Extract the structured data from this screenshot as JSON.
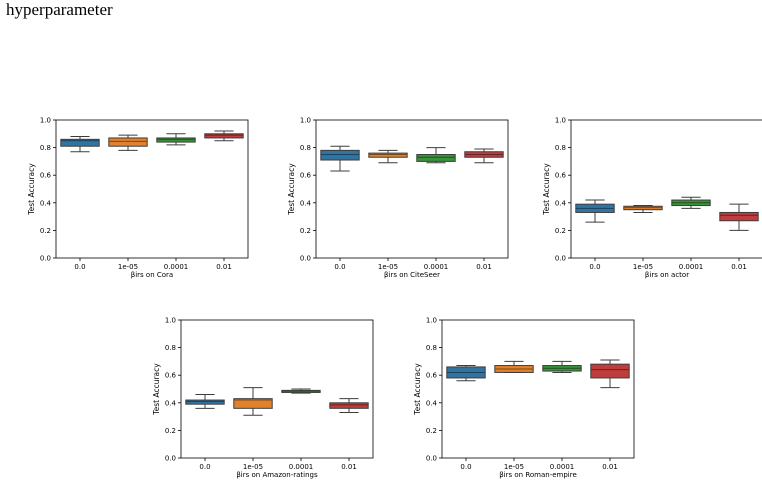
{
  "heading": "hyperparameter",
  "chart_data": [
    {
      "type": "box",
      "xlabel": "βirs on Cora",
      "ylabel": "Test Accuracy",
      "ylim": [
        0,
        1
      ],
      "yticks": [
        "0.0",
        "0.2",
        "0.4",
        "0.6",
        "0.8",
        "1.0"
      ],
      "categories": [
        "0.0",
        "1e-05",
        "0.0001",
        "0.01"
      ],
      "boxes": [
        {
          "whisker_low": 0.77,
          "q1": 0.81,
          "median": 0.85,
          "q3": 0.86,
          "whisker_high": 0.88
        },
        {
          "whisker_low": 0.78,
          "q1": 0.81,
          "median": 0.845,
          "q3": 0.87,
          "whisker_high": 0.89
        },
        {
          "whisker_low": 0.82,
          "q1": 0.84,
          "median": 0.86,
          "q3": 0.87,
          "whisker_high": 0.9
        },
        {
          "whisker_low": 0.85,
          "q1": 0.87,
          "median": 0.89,
          "q3": 0.9,
          "whisker_high": 0.92
        }
      ]
    },
    {
      "type": "box",
      "xlabel": "βirs on CiteSeer",
      "ylabel": "Test Accuracy",
      "ylim": [
        0,
        1
      ],
      "yticks": [
        "0.0",
        "0.2",
        "0.4",
        "0.6",
        "0.8",
        "1.0"
      ],
      "categories": [
        "0.0",
        "1e-05",
        "0.0001",
        "0.01"
      ],
      "boxes": [
        {
          "whisker_low": 0.63,
          "q1": 0.71,
          "median": 0.75,
          "q3": 0.78,
          "whisker_high": 0.81
        },
        {
          "whisker_low": 0.69,
          "q1": 0.73,
          "median": 0.75,
          "q3": 0.76,
          "whisker_high": 0.78
        },
        {
          "whisker_low": 0.69,
          "q1": 0.7,
          "median": 0.73,
          "q3": 0.75,
          "whisker_high": 0.8
        },
        {
          "whisker_low": 0.69,
          "q1": 0.73,
          "median": 0.75,
          "q3": 0.77,
          "whisker_high": 0.79
        }
      ]
    },
    {
      "type": "box",
      "xlabel": "βirs on actor",
      "ylabel": "Test Accuracy",
      "ylim": [
        0,
        1
      ],
      "yticks": [
        "0.0",
        "0.2",
        "0.4",
        "0.6",
        "0.8",
        "1.0"
      ],
      "categories": [
        "0.0",
        "1e-05",
        "0.0001",
        "0.01"
      ],
      "boxes": [
        {
          "whisker_low": 0.26,
          "q1": 0.33,
          "median": 0.36,
          "q3": 0.39,
          "whisker_high": 0.42
        },
        {
          "whisker_low": 0.33,
          "q1": 0.35,
          "median": 0.365,
          "q3": 0.375,
          "whisker_high": 0.38
        },
        {
          "whisker_low": 0.36,
          "q1": 0.38,
          "median": 0.4,
          "q3": 0.42,
          "whisker_high": 0.44
        },
        {
          "whisker_low": 0.2,
          "q1": 0.27,
          "median": 0.31,
          "q3": 0.33,
          "whisker_high": 0.39
        }
      ]
    },
    {
      "type": "box",
      "xlabel": "βirs on Amazon-ratings",
      "ylabel": "Test Accuracy",
      "ylim": [
        0,
        1
      ],
      "yticks": [
        "0.0",
        "0.2",
        "0.4",
        "0.6",
        "0.8",
        "1.0"
      ],
      "categories": [
        "0.0",
        "1e-05",
        "0.0001",
        "0.01"
      ],
      "boxes": [
        {
          "whisker_low": 0.36,
          "q1": 0.39,
          "median": 0.41,
          "q3": 0.42,
          "whisker_high": 0.46
        },
        {
          "whisker_low": 0.31,
          "q1": 0.36,
          "median": 0.42,
          "q3": 0.43,
          "whisker_high": 0.51
        },
        {
          "whisker_low": 0.47,
          "q1": 0.475,
          "median": 0.485,
          "q3": 0.49,
          "whisker_high": 0.5
        },
        {
          "whisker_low": 0.33,
          "q1": 0.36,
          "median": 0.385,
          "q3": 0.4,
          "whisker_high": 0.43
        }
      ]
    },
    {
      "type": "box",
      "xlabel": "βirs on Roman-empire",
      "ylabel": "Test Accuracy",
      "ylim": [
        0,
        1
      ],
      "yticks": [
        "0.0",
        "0.2",
        "0.4",
        "0.6",
        "0.8",
        "1.0"
      ],
      "categories": [
        "0.0",
        "1e-05",
        "0.0001",
        "0.01"
      ],
      "boxes": [
        {
          "whisker_low": 0.56,
          "q1": 0.58,
          "median": 0.62,
          "q3": 0.66,
          "whisker_high": 0.67
        },
        {
          "whisker_low": 0.62,
          "q1": 0.62,
          "median": 0.645,
          "q3": 0.67,
          "whisker_high": 0.7
        },
        {
          "whisker_low": 0.62,
          "q1": 0.63,
          "median": 0.65,
          "q3": 0.67,
          "whisker_high": 0.7
        },
        {
          "whisker_low": 0.51,
          "q1": 0.58,
          "median": 0.64,
          "q3": 0.68,
          "whisker_high": 0.71
        }
      ]
    }
  ],
  "colors": [
    "#3274a1",
    "#e1812c",
    "#3a923a",
    "#c03d3e"
  ]
}
